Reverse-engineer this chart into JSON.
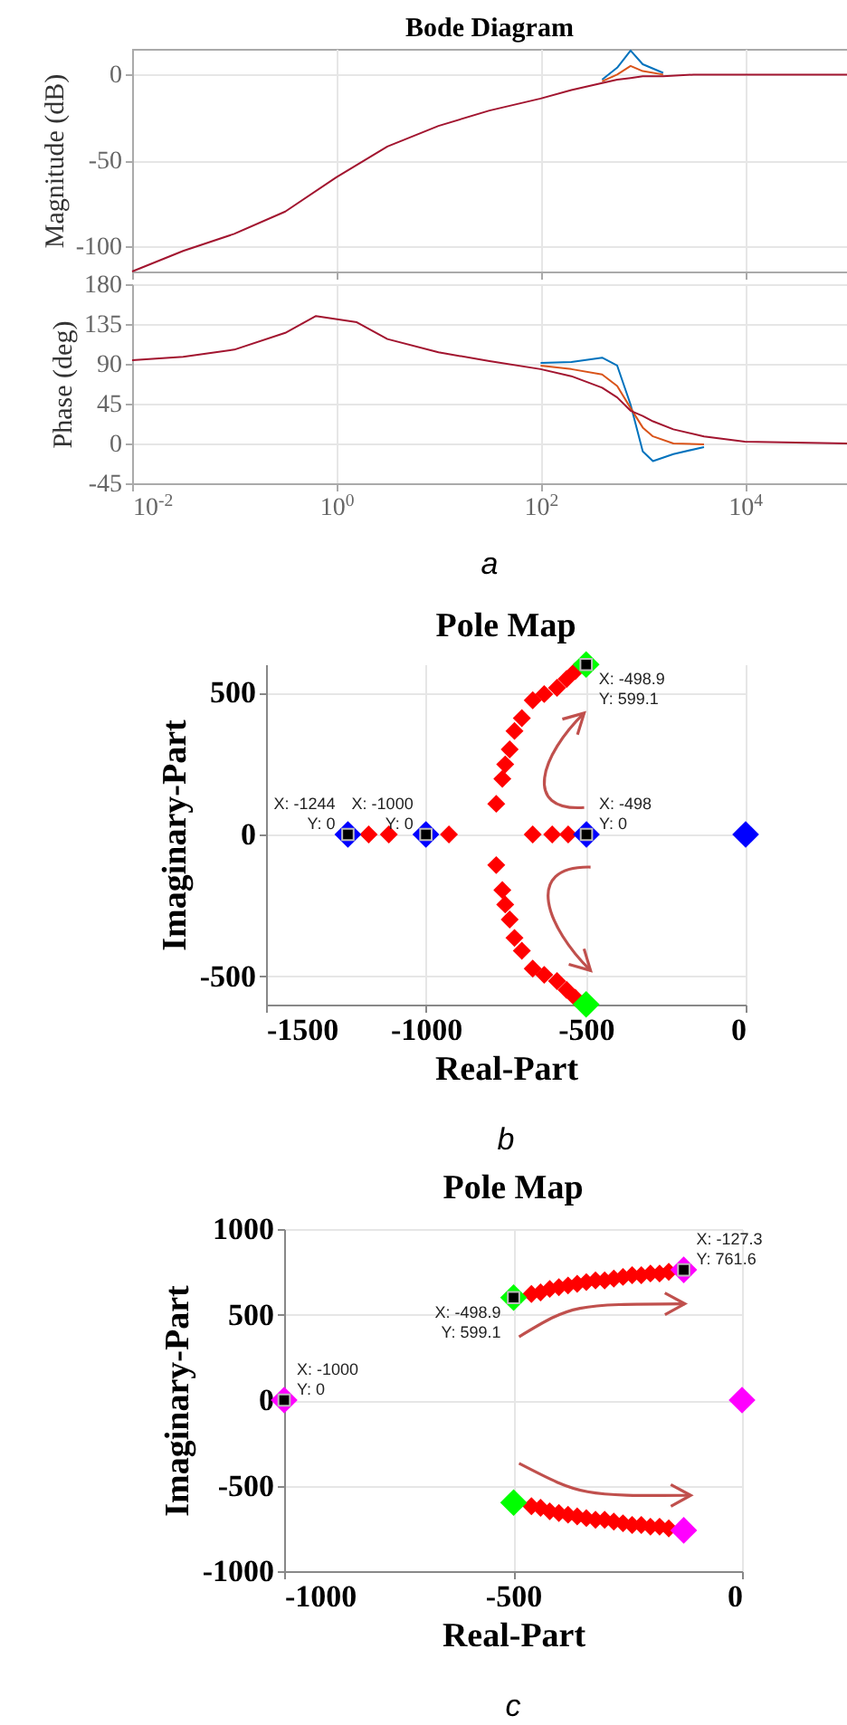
{
  "chart_data": [
    {
      "type": "line",
      "title": "Bode Diagram",
      "ylabel": "Magnitude (dB)",
      "log": "x",
      "grid": true,
      "tick_labels": "y",
      "xlim": [
        0.01,
        100000
      ],
      "xticks": [
        {
          "value": 0.01,
          "label": null
        },
        {
          "value": 1,
          "label": null
        },
        {
          "value": 100,
          "label": null
        },
        {
          "value": 10000,
          "label": null
        }
      ],
      "ylim": [
        -115,
        15
      ],
      "yticks": [
        -100,
        -50,
        0
      ],
      "series": [
        {
          "color": "#0072bd",
          "x": [
            400,
            562,
            760,
            1000,
            1585
          ],
          "values": [
            -3,
            4,
            14,
            6,
            1
          ]
        },
        {
          "color": "#d95319",
          "x": [
            400,
            562,
            760,
            1000,
            1585
          ],
          "values": [
            -4,
            0,
            5,
            2,
            0
          ]
        },
        {
          "color": "#a2142f",
          "x": [
            0.01,
            0.0316,
            0.1,
            0.316,
            1,
            3.16,
            10,
            31.6,
            100,
            200,
            400,
            562,
            760,
            1000,
            1585,
            3162,
            10000,
            100000
          ],
          "values": [
            -115,
            -103,
            -93,
            -80,
            -60,
            -42,
            -30,
            -21,
            -14,
            -9,
            -5,
            -3,
            -2,
            -1,
            -1,
            0,
            0,
            0
          ]
        }
      ]
    },
    {
      "type": "line",
      "ylabel": "Phase (deg)",
      "log": "x",
      "grid": true,
      "annotations": [
        "a"
      ],
      "xlim": [
        0.01,
        100000
      ],
      "xticks": [
        {
          "value": 0.01,
          "label": "10$^{-2}$"
        },
        {
          "value": 1,
          "label": "10$^{0}$"
        },
        {
          "value": 100,
          "label": "10$^{2}$"
        },
        {
          "value": 10000,
          "label": "10$^{4}$"
        }
      ],
      "ylim": [
        -45,
        180
      ],
      "yticks": [
        -45,
        0,
        45,
        90,
        135,
        180
      ],
      "series": [
        {
          "color": "#0072bd",
          "x": [
            100,
            200,
            400,
            562,
            760,
            1000,
            1259,
            1995,
            3981
          ],
          "values": [
            91,
            92,
            97,
            88,
            44,
            -9,
            -20,
            -12,
            -4
          ]
        },
        {
          "color": "#d95319",
          "x": [
            100,
            200,
            400,
            562,
            760,
            1000,
            1259,
            1995,
            3981
          ],
          "values": [
            88,
            84,
            78,
            65,
            40,
            18,
            8,
            0,
            -1
          ]
        },
        {
          "color": "#a2142f",
          "x": [
            0.01,
            0.0316,
            0.1,
            0.316,
            0.631,
            1.585,
            3.16,
            10,
            31.6,
            100,
            200,
            400,
            562,
            760,
            1000,
            1259,
            1995,
            3981,
            10000,
            31623,
            100000
          ],
          "values": [
            94,
            98,
            106,
            125,
            144,
            137,
            118,
            103,
            93,
            84,
            76,
            63,
            52,
            37,
            31,
            25,
            16,
            8,
            2,
            1,
            0
          ]
        }
      ]
    },
    {
      "type": "scatter",
      "title": "Pole Map",
      "xlabel": "Real-Part",
      "ylabel": "Imaginary-Part",
      "grid": true,
      "marker": "diamond",
      "xlim": [
        -1500,
        0
      ],
      "xticks": [
        -1500,
        -1000,
        -500,
        0
      ],
      "ylim": [
        -600,
        600
      ],
      "yticks": [
        -500,
        0,
        500
      ],
      "series": [
        {
          "color": "#ff0000",
          "x": [
            -1179,
            -1116,
            -928,
            -666,
            -605,
            -555,
            -780,
            -761,
            -752,
            -738,
            -723,
            -700,
            -666,
            -630,
            -590,
            -560,
            -533,
            -780,
            -761,
            -752,
            -738,
            -723,
            -700,
            -666,
            -630,
            -590,
            -560,
            -533
          ],
          "values": [
            0,
            0,
            0,
            0,
            0,
            0,
            108,
            196,
            247,
            300,
            365,
            410,
            473,
            495,
            517,
            548,
            576,
            -108,
            -196,
            -247,
            -300,
            -365,
            -410,
            -473,
            -495,
            -517,
            -548,
            -576
          ]
        },
        {
          "color": "#0000ff",
          "x": [
            -1244,
            -1000,
            -498,
            0
          ],
          "values": [
            0,
            0,
            0,
            0
          ]
        },
        {
          "color": "#00ff00",
          "x": [
            -498.9,
            -498.9
          ],
          "values": [
            599.1,
            -599.1
          ]
        }
      ],
      "annotations": [
        {
          "text": "X: -1244\nY: 0",
          "x": -1244,
          "y": 0
        },
        {
          "text": "X: -1000\nY: 0",
          "x": -1000,
          "y": 0
        },
        {
          "text": "X: -498.9\nY: 599.1",
          "x": -498.9,
          "y": 599.1
        },
        {
          "text": "X: -498\nY: 0",
          "x": -498,
          "y": 0
        },
        "b"
      ]
    },
    {
      "type": "scatter",
      "title": "Pole Map",
      "xlabel": "Real-Part",
      "ylabel": "Imaginary-Part",
      "grid": true,
      "marker": "diamond",
      "xlim": [
        -1000,
        0
      ],
      "xticks": [
        -1000,
        -500,
        0
      ],
      "ylim": [
        -1000,
        1000
      ],
      "yticks": [
        -1000,
        -500,
        0,
        500,
        1000
      ],
      "series": [
        {
          "color": "#ff0000",
          "x": [
            -460,
            -440,
            -420,
            -400,
            -380,
            -360,
            -340,
            -320,
            -300,
            -280,
            -260,
            -240,
            -220,
            -200,
            -180,
            -160,
            -460,
            -440,
            -420,
            -400,
            -380,
            -360,
            -340,
            -320,
            -300,
            -280,
            -260,
            -240,
            -220,
            -200,
            -180,
            -160
          ],
          "values": [
            620,
            630,
            650,
            660,
            670,
            680,
            690,
            700,
            700,
            710,
            720,
            730,
            730,
            740,
            740,
            750,
            -620,
            -630,
            -650,
            -660,
            -670,
            -680,
            -690,
            -700,
            -700,
            -710,
            -720,
            -730,
            -730,
            -740,
            -740,
            -750
          ]
        },
        {
          "color": "#00ff00",
          "x": [
            -498.9,
            -498.9
          ],
          "values": [
            599.1,
            -599.1
          ]
        },
        {
          "color": "#ff00ff",
          "x": [
            -1000,
            -127.3,
            -127.3,
            0
          ],
          "values": [
            0,
            761.6,
            -761.6,
            0
          ]
        }
      ],
      "annotations": [
        {
          "text": "X: -1000\nY: 0",
          "x": -1000,
          "y": 0
        },
        {
          "text": "X: -498.9\nY: 599.1",
          "x": -498.9,
          "y": 599.1
        },
        {
          "text": "X: -127.3\nY: 761.6",
          "x": -127.3,
          "y": 761.6
        },
        "c"
      ]
    }
  ]
}
